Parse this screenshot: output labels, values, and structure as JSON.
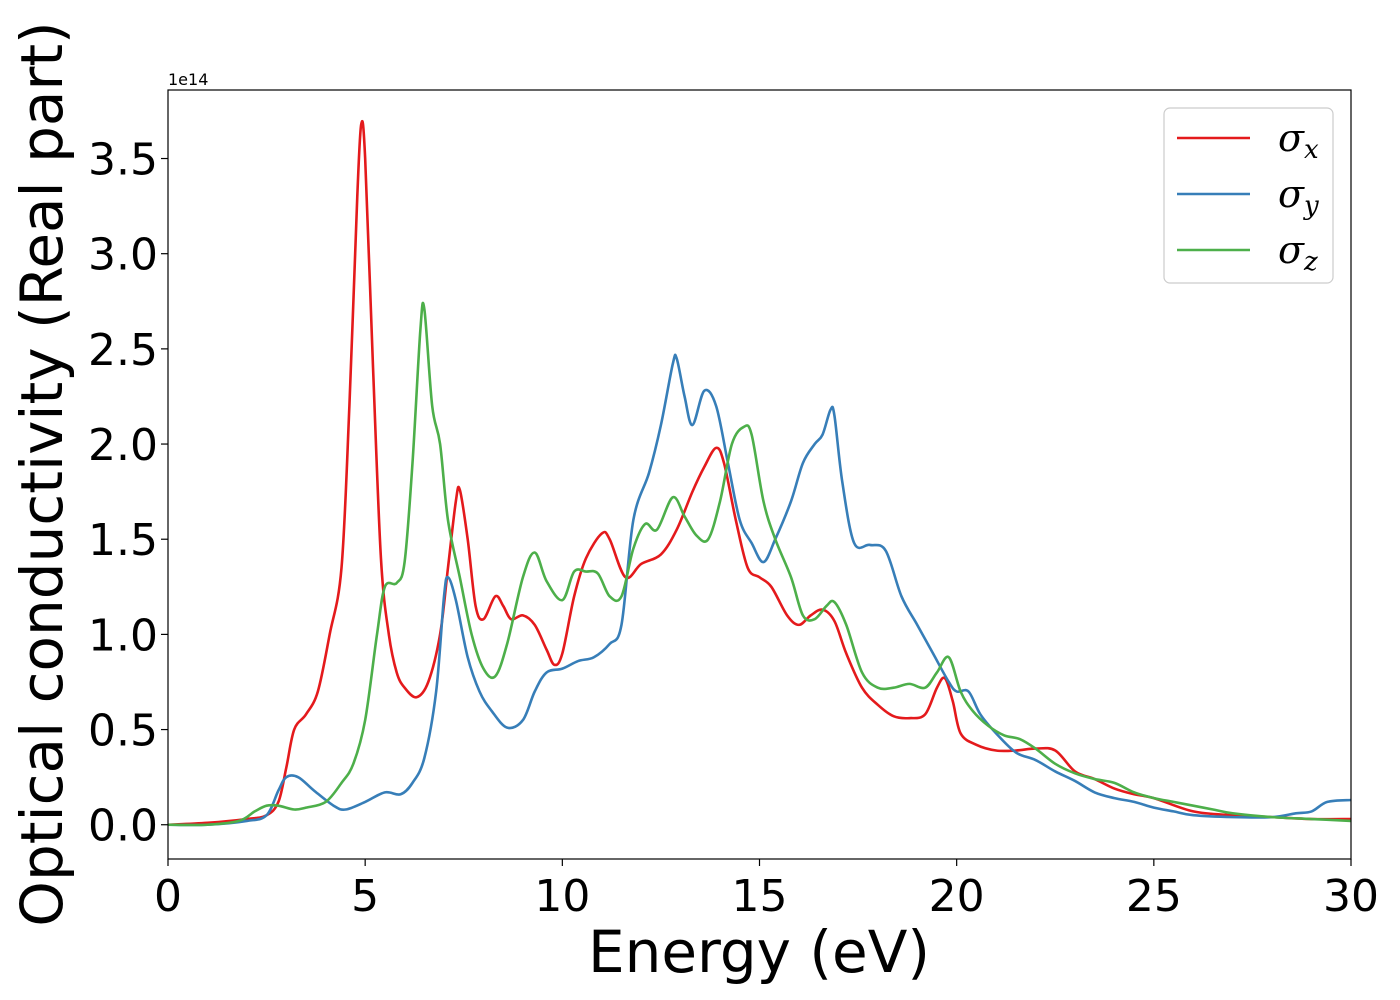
{
  "chart_data": {
    "type": "line",
    "xlabel": "Energy (eV)",
    "ylabel": "Optical conductivity (Real part)",
    "y_offset_label": "1e14",
    "xlim": [
      0,
      30
    ],
    "ylim": [
      -0.18,
      3.86
    ],
    "x_ticks": [
      0,
      5,
      10,
      15,
      20,
      25,
      30
    ],
    "y_ticks": [
      0.0,
      0.5,
      1.0,
      1.5,
      2.0,
      2.5,
      3.0,
      3.5
    ],
    "x_tick_labels": [
      "0",
      "5",
      "10",
      "15",
      "20",
      "25",
      "30"
    ],
    "y_tick_labels": [
      "0.0",
      "0.5",
      "1.0",
      "1.5",
      "2.0",
      "2.5",
      "3.0",
      "3.5"
    ],
    "grid": false,
    "legend_position": "top-right",
    "series": [
      {
        "name": "σx",
        "name_base": "σ",
        "name_sub": "x",
        "color": "#e41a1c",
        "points": [
          [
            0,
            0
          ],
          [
            1,
            0.01
          ],
          [
            2,
            0.03
          ],
          [
            2.5,
            0.05
          ],
          [
            2.8,
            0.12
          ],
          [
            3,
            0.3
          ],
          [
            3.2,
            0.5
          ],
          [
            3.5,
            0.58
          ],
          [
            3.8,
            0.7
          ],
          [
            4.1,
            1.0
          ],
          [
            4.4,
            1.35
          ],
          [
            4.6,
            2.2
          ],
          [
            4.8,
            3.3
          ],
          [
            4.9,
            3.68
          ],
          [
            5.0,
            3.5
          ],
          [
            5.2,
            2.4
          ],
          [
            5.4,
            1.4
          ],
          [
            5.6,
            1.0
          ],
          [
            5.8,
            0.8
          ],
          [
            6.0,
            0.72
          ],
          [
            6.3,
            0.67
          ],
          [
            6.6,
            0.75
          ],
          [
            6.9,
            1.0
          ],
          [
            7.1,
            1.35
          ],
          [
            7.3,
            1.7
          ],
          [
            7.4,
            1.76
          ],
          [
            7.6,
            1.5
          ],
          [
            7.8,
            1.15
          ],
          [
            8.0,
            1.08
          ],
          [
            8.3,
            1.2
          ],
          [
            8.5,
            1.15
          ],
          [
            8.7,
            1.08
          ],
          [
            9.0,
            1.1
          ],
          [
            9.3,
            1.05
          ],
          [
            9.6,
            0.92
          ],
          [
            9.8,
            0.84
          ],
          [
            10.0,
            0.9
          ],
          [
            10.3,
            1.2
          ],
          [
            10.6,
            1.4
          ],
          [
            11.0,
            1.53
          ],
          [
            11.2,
            1.5
          ],
          [
            11.6,
            1.3
          ],
          [
            12.0,
            1.37
          ],
          [
            12.5,
            1.42
          ],
          [
            12.9,
            1.55
          ],
          [
            13.3,
            1.75
          ],
          [
            13.6,
            1.88
          ],
          [
            13.9,
            1.98
          ],
          [
            14.1,
            1.9
          ],
          [
            14.4,
            1.6
          ],
          [
            14.7,
            1.35
          ],
          [
            15.0,
            1.3
          ],
          [
            15.3,
            1.25
          ],
          [
            15.7,
            1.1
          ],
          [
            16.0,
            1.05
          ],
          [
            16.3,
            1.1
          ],
          [
            16.6,
            1.13
          ],
          [
            16.9,
            1.07
          ],
          [
            17.2,
            0.9
          ],
          [
            17.6,
            0.72
          ],
          [
            18.0,
            0.63
          ],
          [
            18.4,
            0.57
          ],
          [
            18.8,
            0.56
          ],
          [
            19.2,
            0.58
          ],
          [
            19.5,
            0.72
          ],
          [
            19.7,
            0.77
          ],
          [
            19.9,
            0.65
          ],
          [
            20.1,
            0.48
          ],
          [
            20.5,
            0.42
          ],
          [
            21.0,
            0.39
          ],
          [
            21.5,
            0.39
          ],
          [
            22.0,
            0.4
          ],
          [
            22.5,
            0.39
          ],
          [
            23.0,
            0.28
          ],
          [
            23.5,
            0.24
          ],
          [
            24.0,
            0.19
          ],
          [
            24.5,
            0.16
          ],
          [
            25.0,
            0.14
          ],
          [
            26.0,
            0.07
          ],
          [
            27.0,
            0.05
          ],
          [
            28.0,
            0.04
          ],
          [
            29.0,
            0.03
          ],
          [
            30.0,
            0.03
          ]
        ]
      },
      {
        "name": "σy",
        "name_base": "σ",
        "name_sub": "y",
        "color": "#377eb8",
        "points": [
          [
            0,
            0
          ],
          [
            1,
            0
          ],
          [
            2,
            0.02
          ],
          [
            2.5,
            0.05
          ],
          [
            2.8,
            0.18
          ],
          [
            3.0,
            0.25
          ],
          [
            3.3,
            0.25
          ],
          [
            3.7,
            0.18
          ],
          [
            4.2,
            0.1
          ],
          [
            4.5,
            0.08
          ],
          [
            5.0,
            0.12
          ],
          [
            5.5,
            0.17
          ],
          [
            5.9,
            0.16
          ],
          [
            6.2,
            0.22
          ],
          [
            6.5,
            0.35
          ],
          [
            6.8,
            0.7
          ],
          [
            7.0,
            1.2
          ],
          [
            7.1,
            1.3
          ],
          [
            7.3,
            1.18
          ],
          [
            7.6,
            0.88
          ],
          [
            7.9,
            0.7
          ],
          [
            8.2,
            0.6
          ],
          [
            8.6,
            0.51
          ],
          [
            9.0,
            0.55
          ],
          [
            9.3,
            0.7
          ],
          [
            9.6,
            0.8
          ],
          [
            10.0,
            0.82
          ],
          [
            10.4,
            0.86
          ],
          [
            10.8,
            0.88
          ],
          [
            11.2,
            0.95
          ],
          [
            11.5,
            1.05
          ],
          [
            11.8,
            1.6
          ],
          [
            12.2,
            1.85
          ],
          [
            12.5,
            2.1
          ],
          [
            12.8,
            2.42
          ],
          [
            12.9,
            2.45
          ],
          [
            13.1,
            2.25
          ],
          [
            13.3,
            2.1
          ],
          [
            13.6,
            2.28
          ],
          [
            13.9,
            2.2
          ],
          [
            14.2,
            1.9
          ],
          [
            14.5,
            1.6
          ],
          [
            14.8,
            1.48
          ],
          [
            15.1,
            1.38
          ],
          [
            15.4,
            1.5
          ],
          [
            15.8,
            1.7
          ],
          [
            16.1,
            1.9
          ],
          [
            16.4,
            2.0
          ],
          [
            16.6,
            2.05
          ],
          [
            16.8,
            2.18
          ],
          [
            16.9,
            2.15
          ],
          [
            17.1,
            1.8
          ],
          [
            17.4,
            1.48
          ],
          [
            17.8,
            1.47
          ],
          [
            18.2,
            1.44
          ],
          [
            18.6,
            1.2
          ],
          [
            19.0,
            1.05
          ],
          [
            19.4,
            0.9
          ],
          [
            19.8,
            0.75
          ],
          [
            20.0,
            0.7
          ],
          [
            20.3,
            0.7
          ],
          [
            20.6,
            0.58
          ],
          [
            21.0,
            0.48
          ],
          [
            21.5,
            0.38
          ],
          [
            22.0,
            0.34
          ],
          [
            22.5,
            0.28
          ],
          [
            23.0,
            0.23
          ],
          [
            23.5,
            0.17
          ],
          [
            24.0,
            0.14
          ],
          [
            24.5,
            0.12
          ],
          [
            25.0,
            0.09
          ],
          [
            25.5,
            0.07
          ],
          [
            26.0,
            0.05
          ],
          [
            27.0,
            0.04
          ],
          [
            28.0,
            0.04
          ],
          [
            28.6,
            0.06
          ],
          [
            29.0,
            0.07
          ],
          [
            29.4,
            0.12
          ],
          [
            30.0,
            0.13
          ]
        ]
      },
      {
        "name": "σz",
        "name_base": "σ",
        "name_sub": "z",
        "color": "#4daf4a",
        "points": [
          [
            0,
            0
          ],
          [
            1,
            0
          ],
          [
            1.8,
            0.02
          ],
          [
            2.2,
            0.07
          ],
          [
            2.5,
            0.1
          ],
          [
            2.8,
            0.1
          ],
          [
            3.2,
            0.08
          ],
          [
            3.5,
            0.09
          ],
          [
            4.0,
            0.12
          ],
          [
            4.4,
            0.22
          ],
          [
            4.7,
            0.32
          ],
          [
            5.0,
            0.55
          ],
          [
            5.3,
            1.0
          ],
          [
            5.5,
            1.25
          ],
          [
            5.8,
            1.27
          ],
          [
            6.0,
            1.38
          ],
          [
            6.2,
            1.9
          ],
          [
            6.4,
            2.6
          ],
          [
            6.5,
            2.71
          ],
          [
            6.7,
            2.2
          ],
          [
            6.9,
            2.0
          ],
          [
            7.1,
            1.6
          ],
          [
            7.4,
            1.3
          ],
          [
            7.7,
            1.0
          ],
          [
            8.0,
            0.82
          ],
          [
            8.3,
            0.78
          ],
          [
            8.6,
            0.95
          ],
          [
            9.0,
            1.3
          ],
          [
            9.3,
            1.43
          ],
          [
            9.6,
            1.28
          ],
          [
            10.0,
            1.18
          ],
          [
            10.3,
            1.33
          ],
          [
            10.6,
            1.33
          ],
          [
            10.9,
            1.32
          ],
          [
            11.2,
            1.2
          ],
          [
            11.5,
            1.2
          ],
          [
            11.8,
            1.45
          ],
          [
            12.1,
            1.58
          ],
          [
            12.4,
            1.55
          ],
          [
            12.8,
            1.72
          ],
          [
            13.1,
            1.62
          ],
          [
            13.4,
            1.52
          ],
          [
            13.7,
            1.5
          ],
          [
            14.0,
            1.7
          ],
          [
            14.3,
            2.0
          ],
          [
            14.6,
            2.09
          ],
          [
            14.8,
            2.05
          ],
          [
            15.1,
            1.7
          ],
          [
            15.4,
            1.5
          ],
          [
            15.8,
            1.3
          ],
          [
            16.1,
            1.1
          ],
          [
            16.4,
            1.08
          ],
          [
            16.7,
            1.15
          ],
          [
            16.9,
            1.17
          ],
          [
            17.2,
            1.05
          ],
          [
            17.6,
            0.8
          ],
          [
            18.0,
            0.72
          ],
          [
            18.4,
            0.72
          ],
          [
            18.8,
            0.74
          ],
          [
            19.2,
            0.72
          ],
          [
            19.5,
            0.8
          ],
          [
            19.8,
            0.88
          ],
          [
            20.1,
            0.7
          ],
          [
            20.4,
            0.6
          ],
          [
            20.8,
            0.52
          ],
          [
            21.2,
            0.47
          ],
          [
            21.6,
            0.45
          ],
          [
            22.0,
            0.4
          ],
          [
            22.5,
            0.32
          ],
          [
            23.0,
            0.27
          ],
          [
            23.5,
            0.24
          ],
          [
            24.0,
            0.22
          ],
          [
            24.5,
            0.17
          ],
          [
            25.0,
            0.14
          ],
          [
            25.5,
            0.12
          ],
          [
            26.0,
            0.1
          ],
          [
            26.5,
            0.08
          ],
          [
            27.0,
            0.06
          ],
          [
            28.0,
            0.04
          ],
          [
            29.0,
            0.03
          ],
          [
            30.0,
            0.02
          ]
        ]
      }
    ]
  }
}
